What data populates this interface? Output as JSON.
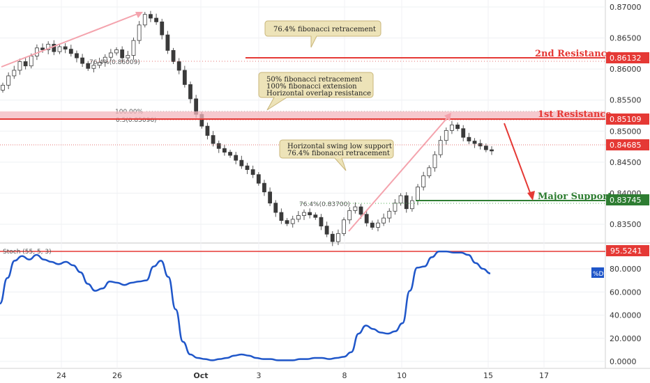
{
  "chart_data": [
    {
      "type": "candlestick",
      "title": "",
      "xlabel": "",
      "ylabel": "",
      "ylim": [
        0.831,
        0.871
      ],
      "x_ticks": [
        "24",
        "26",
        "Oct",
        "3",
        "8",
        "10",
        "15",
        "17"
      ],
      "y_ticks": [
        "0.87000",
        "0.86500",
        "0.86000",
        "0.85500",
        "0.85000",
        "0.84500",
        "0.84000",
        "0.83500"
      ],
      "levels": {
        "second_resistance": {
          "label": "2nd Resistance",
          "value": "0.86132",
          "y": 0.86132
        },
        "first_resistance": {
          "label": "1st Resistance",
          "value": "0.85109",
          "y": 0.85109
        },
        "current_price": {
          "value": "0.84685",
          "y": 0.84685
        },
        "major_support": {
          "label": "Major Support",
          "value": "0.83745",
          "y": 0.83745
        }
      },
      "fib_labels": {
        "fib_a": "76.4%(0.86009)",
        "fib_b": "100.00%",
        "fib_c": "0.5(0.85096)",
        "fib_d": "76.4%(0.83700)"
      },
      "annotations": [
        {
          "lines": [
            "76.4% fibonacci retracement"
          ]
        },
        {
          "lines": [
            "50% fibonacci retracement",
            "100% fibonacci extension",
            "Horizontal overlap resistance"
          ]
        },
        {
          "lines": [
            "Horizontal swing low support",
            "76.4% fibonacci retracement"
          ]
        }
      ],
      "colors": {
        "up": "#26a69a",
        "down": "#ef5350",
        "resistance": "#e53935",
        "support": "#2e7d32",
        "annotation_fill": "#ede3b8"
      },
      "candle_colors": "dark bodies with grey wicks; up candles hollow-ish",
      "series": [
        {
          "close": [
            0.8574,
            0.8589,
            0.8598,
            0.8612,
            0.8605,
            0.8621,
            0.8634,
            0.8631,
            0.864,
            0.8628,
            0.8636,
            0.8632,
            0.8625,
            0.8618,
            0.8609,
            0.8601,
            0.8606,
            0.8611,
            0.8619,
            0.8626,
            0.8631,
            0.8618,
            0.8622,
            0.8646,
            0.8671,
            0.8688,
            0.8682,
            0.8676,
            0.8655,
            0.863,
            0.8612,
            0.8598,
            0.8575,
            0.8552,
            0.8527,
            0.8508,
            0.8493,
            0.848,
            0.8472,
            0.8466,
            0.8461,
            0.8453,
            0.8444,
            0.8438,
            0.843,
            0.8416,
            0.8402,
            0.8384,
            0.8369,
            0.8356,
            0.8351,
            0.8358,
            0.8364,
            0.8369,
            0.8365,
            0.8361,
            0.8347,
            0.8334,
            0.8322,
            0.8335,
            0.8357,
            0.8372,
            0.8378,
            0.8366,
            0.8352,
            0.8345,
            0.8352,
            0.836,
            0.8371,
            0.8384,
            0.8396,
            0.8375,
            0.8388,
            0.841,
            0.8428,
            0.8441,
            0.8462,
            0.8485,
            0.8501,
            0.851,
            0.8504,
            0.849,
            0.8484,
            0.848,
            0.8476,
            0.847,
            0.8468
          ]
        }
      ]
    },
    {
      "type": "line",
      "title": "",
      "indicator_label": "Stoch (55, 5, 3)",
      "series_name": "%D",
      "ylim": [
        -3,
        98
      ],
      "y_ticks": [
        "80.0000",
        "60.0000",
        "40.0000",
        "20.0000",
        "0.0000"
      ],
      "level": "95.5241",
      "series": [
        {
          "name": "%D",
          "values": [
            50,
            72,
            87,
            91,
            88,
            92,
            88,
            86,
            84,
            86,
            83,
            77,
            67,
            61,
            63,
            69,
            68,
            66,
            68,
            69,
            70,
            82,
            87,
            73,
            45,
            17,
            6,
            3,
            2,
            1,
            2,
            3,
            5,
            6,
            5,
            3,
            2,
            2,
            1,
            1,
            1,
            2,
            2,
            3,
            3,
            2,
            3,
            4,
            8,
            24,
            31,
            28,
            25,
            24,
            26,
            33,
            61,
            81,
            82,
            90,
            95,
            95,
            94,
            94,
            92,
            85,
            80,
            76
          ]
        }
      ]
    }
  ]
}
